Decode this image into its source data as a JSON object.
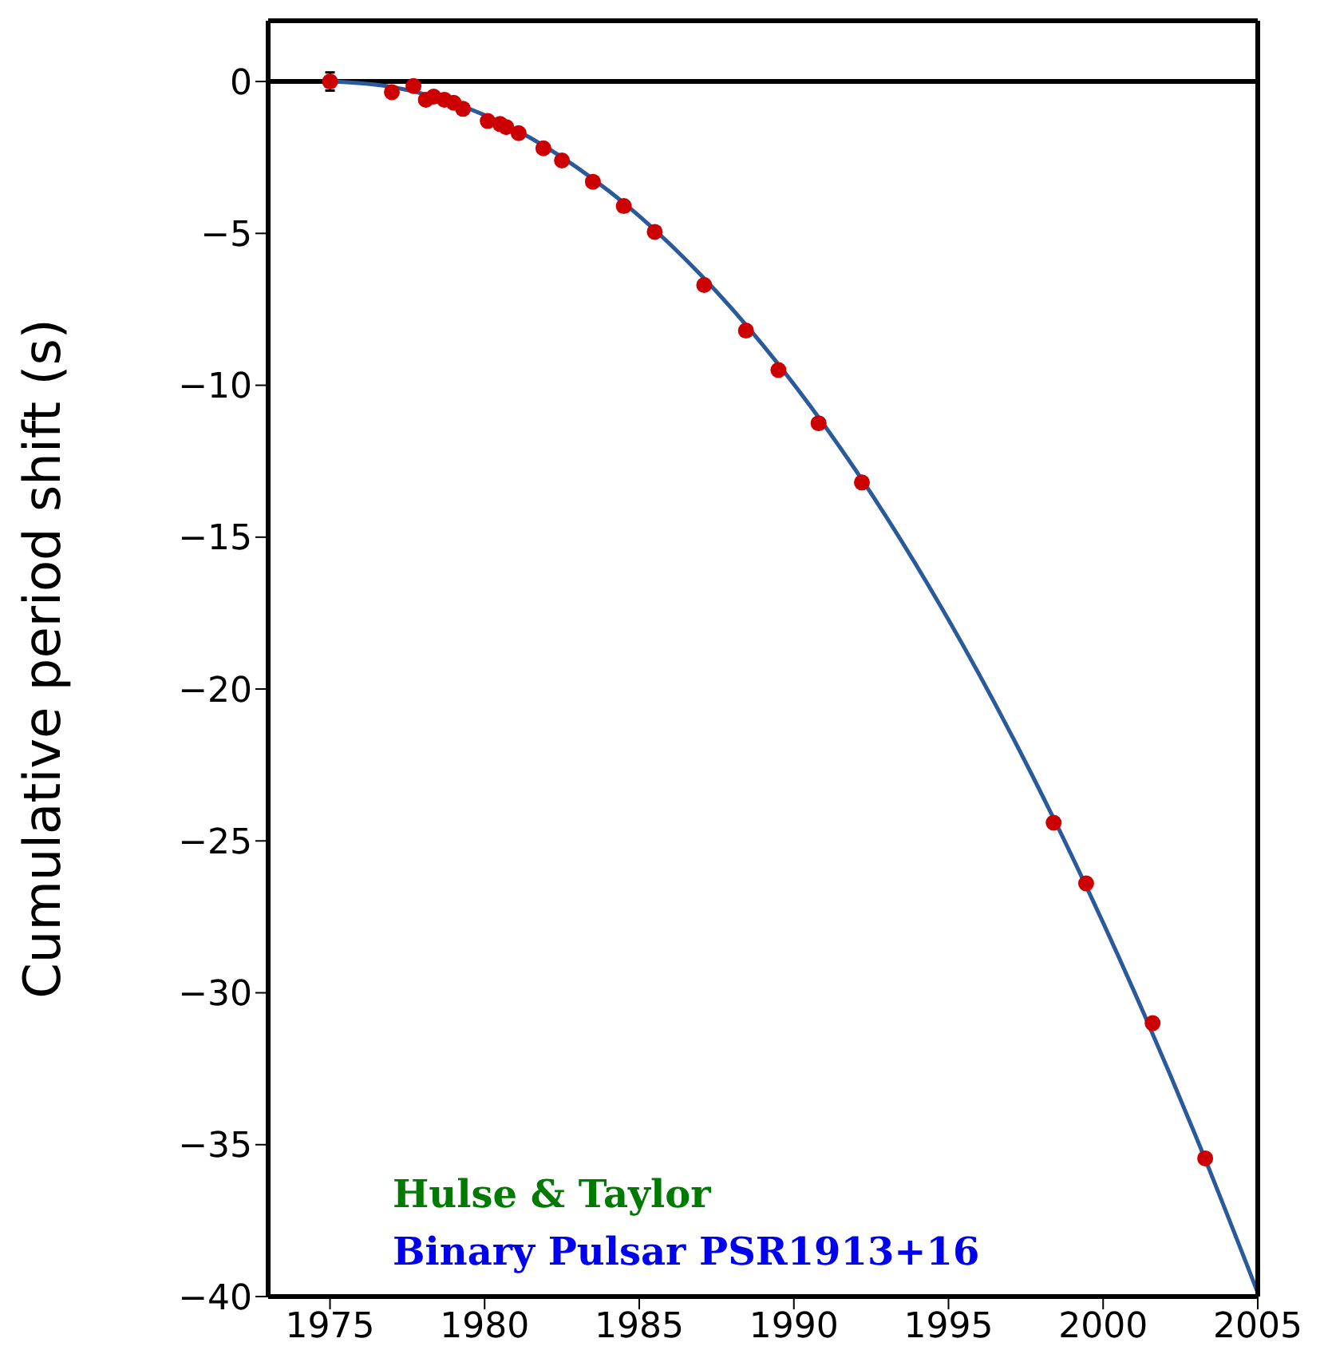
{
  "chart_data": {
    "type": "scatter",
    "ylabel": "Cumulative period shift (s)",
    "xlim": [
      1973,
      2005
    ],
    "xticks": [
      1975,
      1980,
      1985,
      1990,
      1995,
      2000,
      2005
    ],
    "ylim": [
      -40,
      2
    ],
    "yticks": [
      -40,
      -35,
      -30,
      -25,
      -20,
      -15,
      -10,
      -5,
      0
    ],
    "legend": false,
    "series": [
      {
        "marker": "circle",
        "color": "#cc0000",
        "x": [
          1975.0,
          1977.0,
          1977.7,
          1978.1,
          1978.35,
          1978.7,
          1979.0,
          1979.3,
          1980.1,
          1980.5,
          1980.7,
          1981.1,
          1981.9,
          1982.5,
          1983.5,
          1984.5,
          1985.5,
          1987.1,
          1988.45,
          1989.5,
          1990.8,
          1992.2,
          1998.4,
          1999.45,
          2001.6,
          2003.3
        ],
        "values": [
          0.0,
          -0.35,
          -0.15,
          -0.6,
          -0.5,
          -0.6,
          -0.7,
          -0.9,
          -1.3,
          -1.4,
          -1.5,
          -1.7,
          -2.2,
          -2.6,
          -3.3,
          -4.1,
          -4.95,
          -6.7,
          -8.2,
          -9.5,
          -11.25,
          -13.2,
          -24.4,
          -26.4,
          -31.0,
          -35.45
        ],
        "errors": [
          0.3,
          null,
          null,
          null,
          null,
          null,
          null,
          null,
          null,
          null,
          null,
          null,
          null,
          null,
          null,
          null,
          null,
          null,
          null,
          null,
          null,
          null,
          null,
          null,
          null,
          null
        ]
      },
      {
        "type": "line",
        "color": "#2a5a9a",
        "x": [
          1975,
          1977,
          1979,
          1981,
          1983,
          1985,
          1987,
          1989,
          1991,
          1993,
          1995,
          1997,
          1999,
          2001,
          2003,
          2005
        ],
        "values": [
          0,
          -0.18,
          -0.71,
          -1.59,
          -2.84,
          -4.43,
          -6.38,
          -8.68,
          -11.34,
          -14.35,
          -17.72,
          -21.44,
          -25.52,
          -29.95,
          -34.73,
          -39.87
        ]
      }
    ],
    "ref_lines": [
      {
        "axis": "y",
        "value": 0,
        "color": "#000000",
        "line_style": "solid"
      }
    ],
    "annotations": [
      "Hulse & Taylor",
      "Binary Pulsar PSR1913+16"
    ]
  }
}
